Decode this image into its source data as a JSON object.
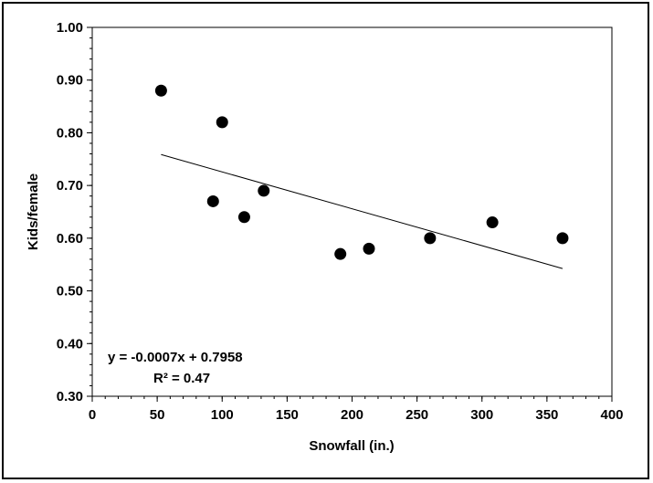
{
  "chart_data": {
    "type": "scatter",
    "title": "",
    "xlabel": "Snowfall (in.)",
    "ylabel": "Kids/female",
    "xlim": [
      0,
      400
    ],
    "ylim": [
      0.3,
      1.0
    ],
    "xticks": [
      "0",
      "50",
      "100",
      "150",
      "200",
      "250",
      "300",
      "350",
      "400"
    ],
    "yticks": [
      "0.30",
      "0.40",
      "0.50",
      "0.60",
      "0.70",
      "0.80",
      "0.90",
      "1.00"
    ],
    "grid": false,
    "legend": "none",
    "series": [
      {
        "x": [
          53,
          93,
          100,
          117,
          132,
          191,
          213,
          260,
          308,
          362
        ],
        "y": [
          0.88,
          0.67,
          0.82,
          0.64,
          0.69,
          0.57,
          0.58,
          0.6,
          0.63,
          0.6
        ],
        "color": "#000000"
      }
    ],
    "trendline": {
      "slope": -0.0007,
      "intercept": 0.7958,
      "x_range": [
        53,
        362
      ],
      "equation_label": "y = -0.0007x + 0.7958",
      "r2_label": "R² = 0.47"
    }
  }
}
